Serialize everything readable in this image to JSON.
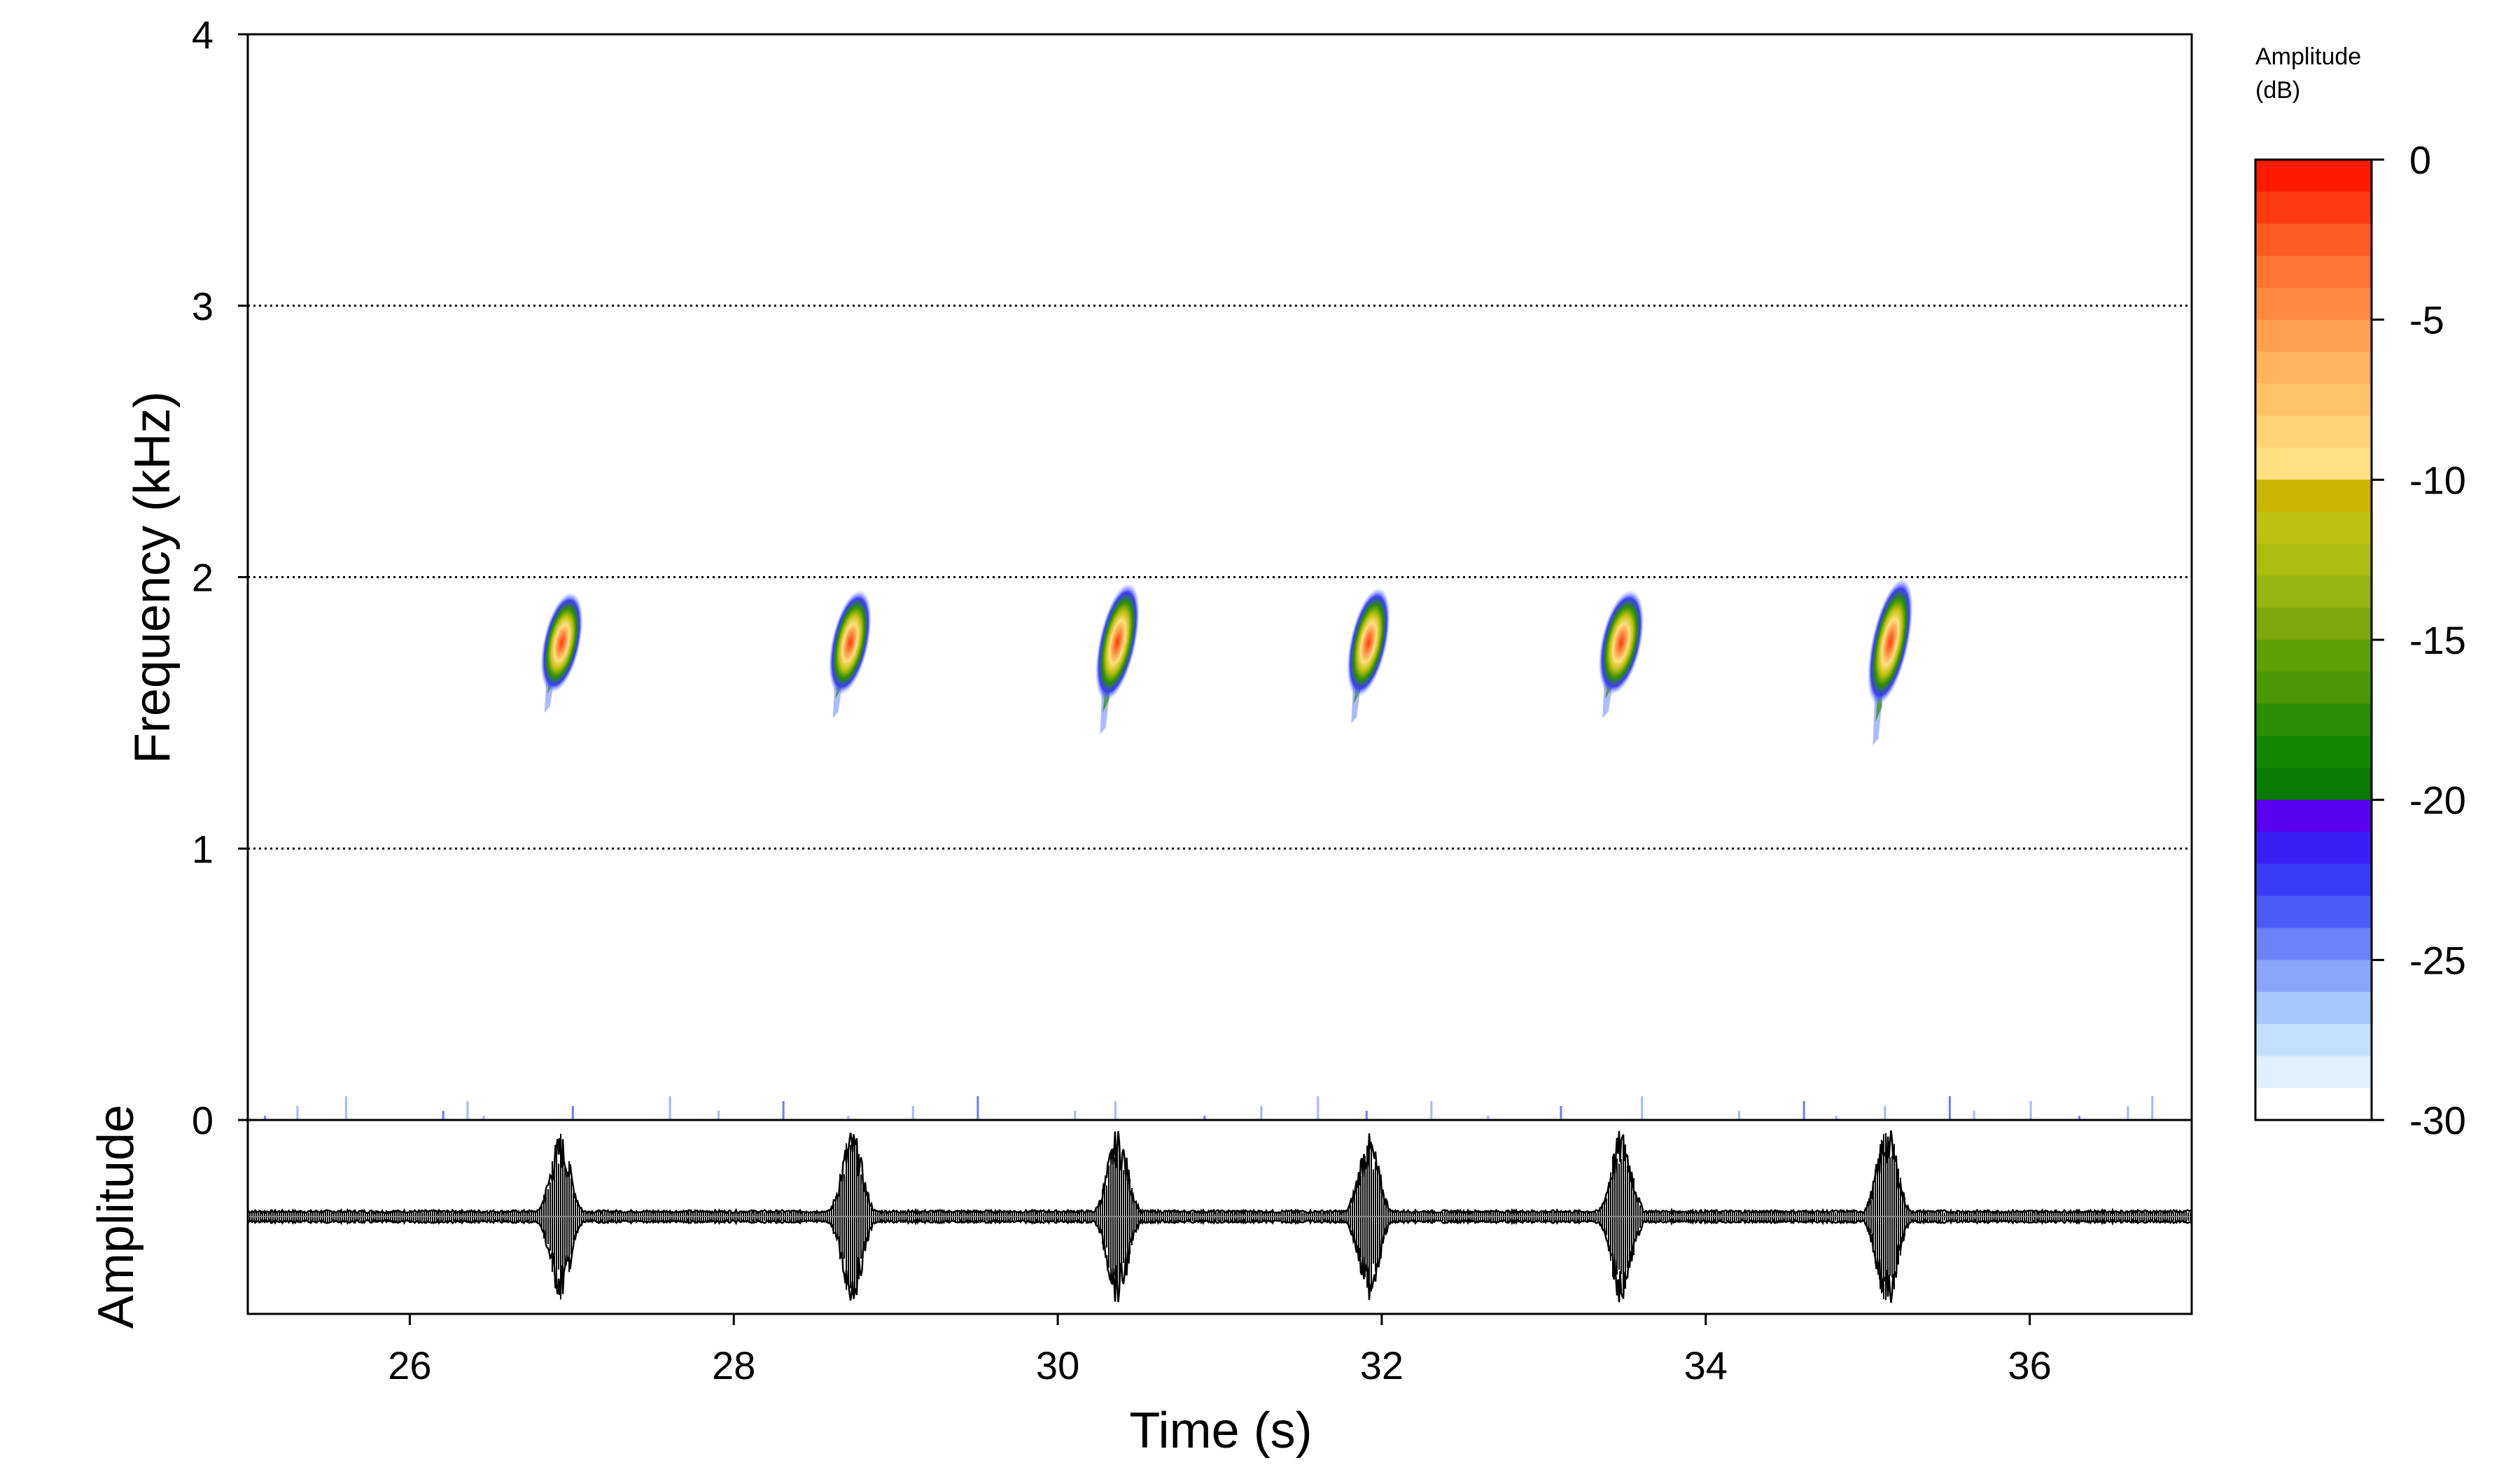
{
  "chart_data": {
    "type": "heatmap",
    "title": "",
    "xlabel": "Time (s)",
    "ylabel": "Frequency (kHz)",
    "xlim": [
      25,
      37
    ],
    "ylim": [
      0,
      4
    ],
    "x_ticks": [
      26,
      28,
      30,
      32,
      34,
      36
    ],
    "y_ticks": [
      0,
      1,
      2,
      3,
      4
    ],
    "grid": "horizontal dotted lines at each frequency tick",
    "spectrogram_calls": [
      {
        "time_start": 26.82,
        "time_end": 27.05,
        "freq_low": 1.5,
        "freq_high": 1.95,
        "peak_freq": 1.75,
        "peak_db": -3
      },
      {
        "time_start": 28.6,
        "time_end": 28.83,
        "freq_low": 1.48,
        "freq_high": 1.95,
        "peak_freq": 1.75,
        "peak_db": -3
      },
      {
        "time_start": 30.25,
        "time_end": 30.48,
        "freq_low": 1.42,
        "freq_high": 1.95,
        "peak_freq": 1.75,
        "peak_db": -3
      },
      {
        "time_start": 31.8,
        "time_end": 32.03,
        "freq_low": 1.46,
        "freq_high": 1.95,
        "peak_freq": 1.75,
        "peak_db": -3
      },
      {
        "time_start": 33.35,
        "time_end": 33.6,
        "freq_low": 1.48,
        "freq_high": 1.95,
        "peak_freq": 1.75,
        "peak_db": -3
      },
      {
        "time_start": 35.02,
        "time_end": 35.25,
        "freq_low": 1.38,
        "freq_high": 1.95,
        "peak_freq": 1.75,
        "peak_db": -3
      }
    ],
    "oscillogram": {
      "ylabel": "Amplitude",
      "bursts": [
        {
          "center": 26.93,
          "half_width": 0.14,
          "relative_amplitude": 0.9
        },
        {
          "center": 28.73,
          "half_width": 0.14,
          "relative_amplitude": 0.95
        },
        {
          "center": 30.37,
          "half_width": 0.14,
          "relative_amplitude": 0.95
        },
        {
          "center": 31.92,
          "half_width": 0.14,
          "relative_amplitude": 0.9
        },
        {
          "center": 33.48,
          "half_width": 0.14,
          "relative_amplitude": 0.95
        },
        {
          "center": 35.12,
          "half_width": 0.14,
          "relative_amplitude": 1.0
        }
      ],
      "noise_level": 0.07
    },
    "colorbar": {
      "title_line1": "Amplitude",
      "title_line2": "(dB)",
      "range": [
        -30,
        0
      ],
      "ticks": [
        0,
        -5,
        -10,
        -15,
        -20,
        -25,
        -30
      ],
      "steps": [
        {
          "from": 0,
          "to": -1,
          "color": "#ff1a00"
        },
        {
          "from": -1,
          "to": -2,
          "color": "#ff3a10"
        },
        {
          "from": -2,
          "to": -3,
          "color": "#ff5a20"
        },
        {
          "from": -3,
          "to": -4,
          "color": "#ff7430"
        },
        {
          "from": -4,
          "to": -5,
          "color": "#ff8a40"
        },
        {
          "from": -5,
          "to": -6,
          "color": "#ff9f50"
        },
        {
          "from": -6,
          "to": -7,
          "color": "#ffb35c"
        },
        {
          "from": -7,
          "to": -8,
          "color": "#ffc466"
        },
        {
          "from": -8,
          "to": -9,
          "color": "#ffd274"
        },
        {
          "from": -9,
          "to": -10,
          "color": "#ffdf80"
        },
        {
          "from": -10,
          "to": -11,
          "color": "#cbb500"
        },
        {
          "from": -11,
          "to": -12,
          "color": "#c0c010"
        },
        {
          "from": -12,
          "to": -13,
          "color": "#aabd10"
        },
        {
          "from": -13,
          "to": -14,
          "color": "#96b510"
        },
        {
          "from": -14,
          "to": -15,
          "color": "#7ba90a"
        },
        {
          "from": -15,
          "to": -16,
          "color": "#5fa008"
        },
        {
          "from": -16,
          "to": -17,
          "color": "#4a9806"
        },
        {
          "from": -17,
          "to": -18,
          "color": "#2a8e04"
        },
        {
          "from": -18,
          "to": -19,
          "color": "#148602"
        },
        {
          "from": -19,
          "to": -20,
          "color": "#0a7a00"
        },
        {
          "from": -20,
          "to": -21,
          "color": "#5a00f0"
        },
        {
          "from": -21,
          "to": -22,
          "color": "#3a1ef5"
        },
        {
          "from": -22,
          "to": -23,
          "color": "#3a3cf8"
        },
        {
          "from": -23,
          "to": -24,
          "color": "#4a5cf8"
        },
        {
          "from": -24,
          "to": -25,
          "color": "#6a82fa"
        },
        {
          "from": -25,
          "to": -26,
          "color": "#8aa6fb"
        },
        {
          "from": -26,
          "to": -27,
          "color": "#a6c6fc"
        },
        {
          "from": -27,
          "to": -28,
          "color": "#c4e0fd"
        },
        {
          "from": -28,
          "to": -29,
          "color": "#dff0fe"
        },
        {
          "from": -29,
          "to": -30,
          "color": "#ffffff"
        }
      ]
    }
  }
}
